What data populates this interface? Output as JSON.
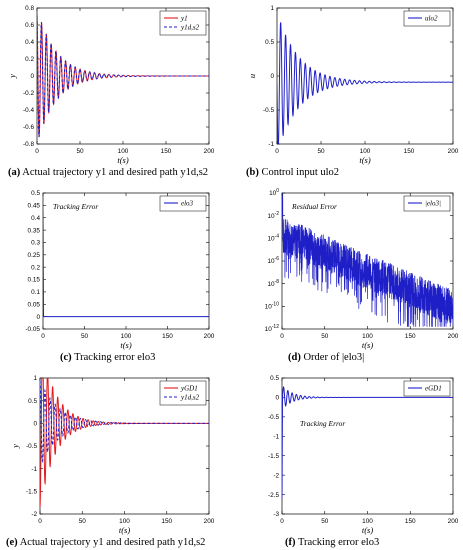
{
  "captions": [
    {
      "tag": "(a)",
      "text": "Actual trajectory y1 and desired path y1d,s2"
    },
    {
      "tag": "(b)",
      "text": "Control input ulo2"
    },
    {
      "tag": "(c)",
      "text": "Tracking error elo3"
    },
    {
      "tag": "(d)",
      "text": "Order of |elo3|"
    },
    {
      "tag": "(e)",
      "text": "Actual trajectory y1 and desired path y1d,s2"
    },
    {
      "tag": "(f)",
      "text": "Tracking error elo3"
    }
  ],
  "chart_data": [
    {
      "id": "a",
      "type": "line",
      "xlabel": "t(s)",
      "ylabel": "y",
      "xlim": [
        0,
        200
      ],
      "ylim": [
        -0.8,
        0.8
      ],
      "xticks": [
        "0",
        "50",
        "100",
        "150",
        "200"
      ],
      "yticks": [
        "-0.8",
        "-0.6",
        "-0.4",
        "-0.2",
        "0",
        "0.2",
        "0.4",
        "0.6",
        "0.8"
      ],
      "legend_position": "top-right",
      "series": [
        {
          "name": "y1",
          "color": "#e41a1c",
          "dash": "solid",
          "form": "decaying_oscillation",
          "amplitude": 0.8,
          "period_s": 5.6,
          "decay_s": 22,
          "offset": 0,
          "phase": 0.3
        },
        {
          "name": "y1d,s2",
          "color": "#1f1fc8",
          "dash": "dashed",
          "form": "decaying_oscillation",
          "amplitude": 0.8,
          "period_s": 5.6,
          "decay_s": 22,
          "offset": 0,
          "phase": 0.5
        }
      ],
      "annotation": ""
    },
    {
      "id": "b",
      "type": "line",
      "xlabel": "t(s)",
      "ylabel": "u",
      "xlim": [
        0,
        200
      ],
      "ylim": [
        -1,
        1.2
      ],
      "xticks": [
        "0",
        "50",
        "100",
        "150",
        "200"
      ],
      "yticks": [
        "-1",
        "-0.5",
        "0",
        "0.5",
        "1"
      ],
      "legend_position": "top-right",
      "series": [
        {
          "name": "ulo2",
          "color": "#1f1fc8",
          "dash": "solid",
          "form": "decaying_oscillation",
          "amplitude": 1.15,
          "period_s": 5.6,
          "decay_s": 24,
          "offset": 0,
          "phase": 1.6
        }
      ],
      "annotation": ""
    },
    {
      "id": "c",
      "type": "line",
      "xlabel": "t(s)",
      "ylabel": "",
      "xlim": [
        0,
        200
      ],
      "ylim": [
        -0.05,
        0.5
      ],
      "xticks": [
        "0",
        "50",
        "100",
        "150",
        "200"
      ],
      "yticks": [
        "-0.05",
        "0",
        "0.05",
        "0.1",
        "0.15",
        "0.2",
        "0.25",
        "0.3",
        "0.35",
        "0.4",
        "0.45",
        "0.5"
      ],
      "legend_position": "top-right",
      "series": [
        {
          "name": "elo3",
          "color": "#1f1fc8",
          "dash": "solid",
          "form": "spike_then_zero",
          "start": 0.43,
          "settle_s": 0.6,
          "offset": 0
        }
      ],
      "annotation": "Tracking Error"
    },
    {
      "id": "d",
      "type": "line",
      "xlabel": "t(s)",
      "ylabel": "",
      "yscale": "log",
      "xlim": [
        0,
        200
      ],
      "ylim_exp": [
        -12,
        0
      ],
      "xticks": [
        "0",
        "50",
        "100",
        "150",
        "200"
      ],
      "yticks": [
        "10^0",
        "10^-2",
        "10^-4",
        "10^-6",
        "10^-8",
        "10^-10",
        "10^-12"
      ],
      "legend_position": "top-right",
      "series": [
        {
          "name": "|elo3|",
          "color": "#1f1fc8",
          "dash": "solid",
          "form": "log_noise"
        }
      ],
      "annotation": "Residual Error"
    },
    {
      "id": "e",
      "type": "line",
      "xlabel": "t(s)",
      "ylabel": "y",
      "xlim": [
        0,
        200
      ],
      "ylim": [
        -2,
        1
      ],
      "xticks": [
        "0",
        "50",
        "100",
        "150",
        "200"
      ],
      "yticks": [
        "-2",
        "-1.5",
        "-1",
        "-0.5",
        "0",
        "0.5",
        "1"
      ],
      "legend_position": "top-right",
      "series": [
        {
          "name": "yGD1",
          "color": "#e41a1c",
          "dash": "solid",
          "form": "decaying_oscillation",
          "amplitude": 1.85,
          "period_s": 6.0,
          "decay_s": 18,
          "offset": 0,
          "phase": 3.14
        },
        {
          "name": "y1d,s2",
          "color": "#1f1fc8",
          "dash": "dashed",
          "form": "decaying_oscillation",
          "amplitude": 0.95,
          "period_s": 6.0,
          "decay_s": 22,
          "offset": 0,
          "phase": 0.1
        }
      ],
      "annotation": ""
    },
    {
      "id": "f",
      "type": "line",
      "xlabel": "t(s)",
      "ylabel": "",
      "xlim": [
        0,
        200
      ],
      "ylim": [
        -3,
        0.5
      ],
      "xticks": [
        "0",
        "50",
        "100",
        "150",
        "200"
      ],
      "yticks": [
        "-3",
        "-2.5",
        "-2",
        "-1.5",
        "-1",
        "-0.5",
        "0",
        "0.5"
      ],
      "legend_position": "top-right",
      "series": [
        {
          "name": "eGD1",
          "color": "#1f1fc8",
          "dash": "solid",
          "form": "jump_then_osc",
          "start": -2.6,
          "amplitude": 0.3,
          "period_s": 5.0,
          "decay_s": 12
        }
      ],
      "annotation": "Tracking Error"
    }
  ]
}
